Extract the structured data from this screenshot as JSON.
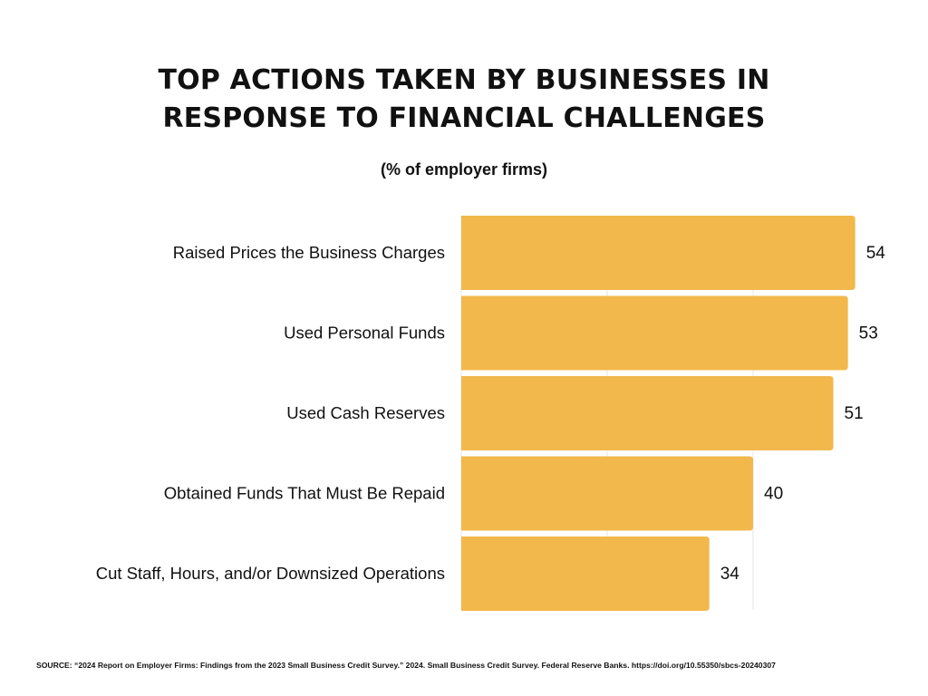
{
  "chart_data": {
    "type": "bar",
    "orientation": "horizontal",
    "title": "TOP ACTIONS TAKEN BY BUSINESSES IN RESPONSE TO FINANCIAL CHALLENGES",
    "title_lines": [
      "TOP ACTIONS TAKEN BY BUSINESSES IN",
      "RESPONSE TO FINANCIAL CHALLENGES"
    ],
    "subtitle": "(% of employer firms)",
    "categories": [
      "Raised Prices the Business Charges",
      "Used Personal Funds",
      "Used Cash Reserves",
      "Obtained Funds That Must Be Repaid",
      "Cut Staff, Hours, and/or Downsized Operations"
    ],
    "values": [
      54,
      53,
      51,
      40,
      34
    ],
    "data_labels": [
      "54",
      "53",
      "51",
      "40",
      "34"
    ],
    "xlim": [
      0,
      60
    ],
    "grid": true,
    "bar_color": "#F2B84B",
    "grid_color": "#E6E6E6",
    "axis_line_color": "#E6E6E6",
    "legend": "none"
  },
  "source": "SOURCE: “2024 Report on Employer Firms: Findings from the 2023 Small Business Credit Survey.” 2024. Small Business Credit Survey. Federal Reserve Banks. https://doi.org/10.55350/sbcs-20240307"
}
